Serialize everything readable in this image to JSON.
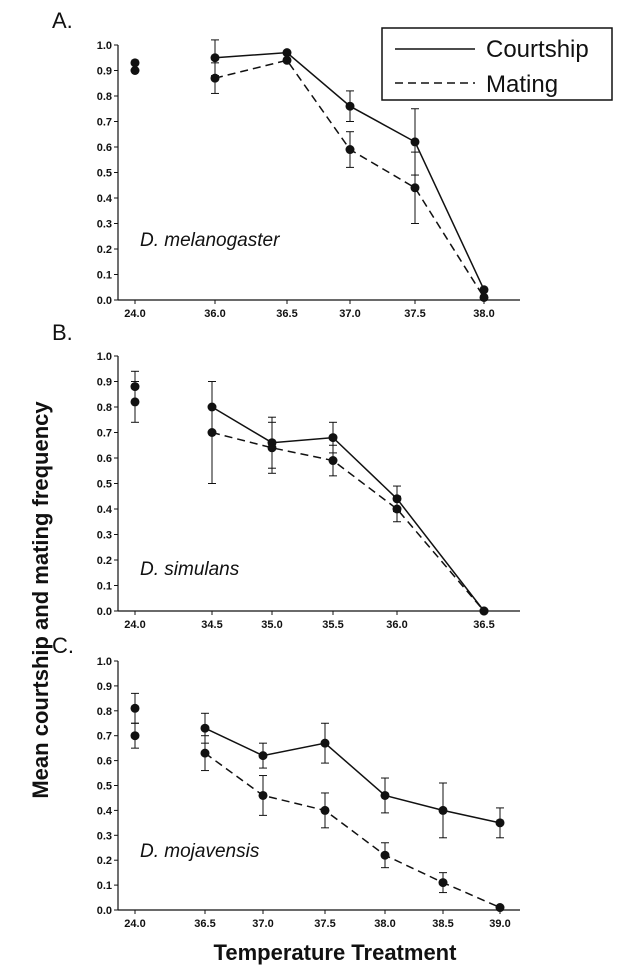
{
  "figure": {
    "ylabel": "Mean courtship and mating frequency",
    "xlabel": "Temperature Treatment"
  },
  "legend": {
    "courtship_label": "Courtship",
    "mating_label": "Mating"
  },
  "chart_data": [
    {
      "type": "line",
      "panel_label": "A.",
      "species": "D. melanogaster",
      "ylim": [
        0,
        1
      ],
      "yticks": [
        "0.0",
        "0.1",
        "0.2",
        "0.3",
        "0.4",
        "0.5",
        "0.6",
        "0.7",
        "0.8",
        "0.9",
        "1.0"
      ],
      "categories": [
        "24.0",
        "36.0",
        "36.5",
        "37.0",
        "37.5",
        "38.0"
      ],
      "series": [
        {
          "name": "Courtship",
          "style": "solid",
          "values": [
            0.9,
            0.95,
            0.97,
            0.76,
            0.62,
            0.04
          ],
          "err": [
            0,
            0.07,
            0,
            0.06,
            0.13,
            0
          ]
        },
        {
          "name": "Mating",
          "style": "dashed",
          "values": [
            0.93,
            0.87,
            0.94,
            0.59,
            0.44,
            0.01
          ],
          "err": [
            0,
            0.06,
            0,
            0.07,
            0.14,
            0
          ]
        }
      ]
    },
    {
      "type": "line",
      "panel_label": "B.",
      "species": "D. simulans",
      "ylim": [
        0,
        1
      ],
      "yticks": [
        "0.0",
        "0.1",
        "0.2",
        "0.3",
        "0.4",
        "0.5",
        "0.6",
        "0.7",
        "0.8",
        "0.9",
        "1.0"
      ],
      "categories": [
        "24.0",
        "34.5",
        "35.0",
        "35.5",
        "36.0",
        "36.5"
      ],
      "series": [
        {
          "name": "Courtship",
          "style": "solid",
          "values": [
            0.88,
            0.8,
            0.66,
            0.68,
            0.44,
            0.0
          ],
          "err": [
            0.06,
            0.1,
            0.1,
            0.06,
            0.05,
            0
          ]
        },
        {
          "name": "Mating",
          "style": "dashed",
          "values": [
            0.82,
            0.7,
            0.64,
            0.59,
            0.4,
            0.0
          ],
          "err": [
            0.08,
            0.2,
            0.1,
            0.06,
            0.05,
            0
          ]
        }
      ]
    },
    {
      "type": "line",
      "panel_label": "C.",
      "species": "D. mojavensis",
      "ylim": [
        0,
        1
      ],
      "yticks": [
        "0.0",
        "0.1",
        "0.2",
        "0.3",
        "0.4",
        "0.5",
        "0.6",
        "0.7",
        "0.8",
        "0.9",
        "1.0"
      ],
      "categories": [
        "24.0",
        "36.5",
        "37.0",
        "37.5",
        "38.0",
        "38.5",
        "39.0"
      ],
      "series": [
        {
          "name": "Courtship",
          "style": "solid",
          "values": [
            0.81,
            0.73,
            0.62,
            0.67,
            0.46,
            0.4,
            0.35
          ],
          "err": [
            0.06,
            0.06,
            0.05,
            0.08,
            0.07,
            0.11,
            0.06
          ]
        },
        {
          "name": "Mating",
          "style": "dashed",
          "values": [
            0.7,
            0.63,
            0.46,
            0.4,
            0.22,
            0.11,
            0.01
          ],
          "err": [
            0.05,
            0.07,
            0.08,
            0.07,
            0.05,
            0.04,
            0
          ]
        }
      ]
    }
  ]
}
